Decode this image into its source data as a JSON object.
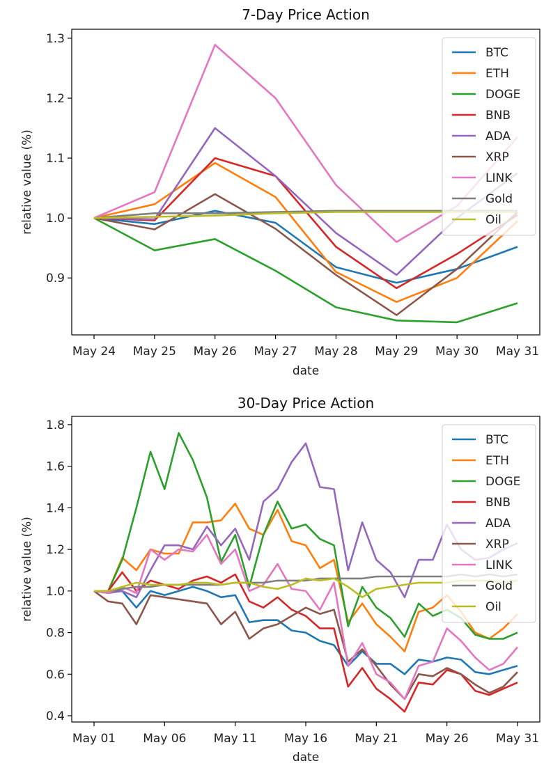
{
  "chart_data": [
    {
      "type": "line",
      "title": "7-Day Price Action",
      "xlabel": "date",
      "ylabel": "relative value (%)",
      "x": [
        "May 24",
        "May 25",
        "May 26",
        "May 27",
        "May 28",
        "May 29",
        "May 30",
        "May 31"
      ],
      "xticks": [
        "May 24",
        "May 25",
        "May 26",
        "May 27",
        "May 28",
        "May 29",
        "May 30",
        "May 31"
      ],
      "yticks": [
        "0.9",
        "1.0",
        "1.1",
        "1.2",
        "1.3"
      ],
      "ylim": [
        0.805,
        1.315
      ],
      "legend": "top-right",
      "series": [
        {
          "name": "BTC",
          "color": "#1f77b4",
          "values": [
            1.0,
            0.99,
            1.012,
            0.992,
            0.918,
            0.892,
            0.915,
            0.952
          ]
        },
        {
          "name": "ETH",
          "color": "#ff7f0e",
          "values": [
            1.0,
            1.023,
            1.092,
            1.035,
            0.91,
            0.86,
            0.9,
            0.995
          ]
        },
        {
          "name": "DOGE",
          "color": "#2ca02c",
          "values": [
            1.0,
            0.946,
            0.965,
            0.912,
            0.851,
            0.829,
            0.826,
            0.858
          ]
        },
        {
          "name": "BNB",
          "color": "#d62728",
          "values": [
            1.0,
            0.996,
            1.1,
            1.07,
            0.952,
            0.883,
            0.94,
            1.005
          ]
        },
        {
          "name": "ADA",
          "color": "#9467bd",
          "values": [
            1.0,
            0.998,
            1.15,
            1.07,
            0.975,
            0.905,
            1.0,
            1.075
          ]
        },
        {
          "name": "XRP",
          "color": "#8c564b",
          "values": [
            1.0,
            0.981,
            1.04,
            0.982,
            0.905,
            0.838,
            0.915,
            1.01
          ]
        },
        {
          "name": "LINK",
          "color": "#e377c2",
          "values": [
            1.0,
            1.043,
            1.289,
            1.2,
            1.055,
            0.96,
            1.02,
            1.135
          ]
        },
        {
          "name": "Gold",
          "color": "#7f7f7f",
          "values": [
            1.0,
            1.008,
            1.008,
            1.01,
            1.012,
            1.012,
            1.012,
            1.012
          ]
        },
        {
          "name": "Oil",
          "color": "#bcbd22",
          "values": [
            1.0,
            1.002,
            1.004,
            1.008,
            1.01,
            1.01,
            1.01,
            1.01
          ]
        }
      ]
    },
    {
      "type": "line",
      "title": "30-Day Price Action",
      "xlabel": "date",
      "ylabel": "relative value (%)",
      "x": [
        "May 01",
        "May 02",
        "May 03",
        "May 04",
        "May 05",
        "May 06",
        "May 07",
        "May 08",
        "May 09",
        "May 10",
        "May 11",
        "May 12",
        "May 13",
        "May 14",
        "May 15",
        "May 16",
        "May 17",
        "May 18",
        "May 19",
        "May 20",
        "May 21",
        "May 22",
        "May 23",
        "May 24",
        "May 25",
        "May 26",
        "May 27",
        "May 28",
        "May 29",
        "May 30",
        "May 31"
      ],
      "xticks": [
        "May 01",
        "May 06",
        "May 11",
        "May 16",
        "May 21",
        "May 26",
        "May 31"
      ],
      "yticks": [
        "0.4",
        "0.6",
        "0.8",
        "1.0",
        "1.2",
        "1.4",
        "1.6",
        "1.8"
      ],
      "ylim": [
        0.37,
        1.84
      ],
      "legend": "top-right",
      "series": [
        {
          "name": "BTC",
          "color": "#1f77b4",
          "values": [
            1.0,
            1.0,
            1.0,
            0.92,
            1.0,
            0.98,
            1.0,
            1.02,
            1.0,
            0.97,
            0.98,
            0.85,
            0.86,
            0.86,
            0.81,
            0.8,
            0.76,
            0.74,
            0.64,
            0.71,
            0.65,
            0.65,
            0.6,
            0.67,
            0.66,
            0.68,
            0.67,
            0.61,
            0.6,
            0.62,
            0.64
          ]
        },
        {
          "name": "ETH",
          "color": "#ff7f0e",
          "values": [
            1.0,
            1.0,
            1.16,
            1.1,
            1.2,
            1.18,
            1.18,
            1.33,
            1.33,
            1.34,
            1.42,
            1.3,
            1.27,
            1.39,
            1.24,
            1.22,
            1.11,
            1.15,
            0.85,
            0.94,
            0.84,
            0.78,
            0.71,
            0.9,
            0.92,
            0.98,
            0.9,
            0.8,
            0.77,
            0.82,
            0.89
          ]
        },
        {
          "name": "DOGE",
          "color": "#2ca02c",
          "values": [
            1.0,
            1.0,
            1.15,
            1.4,
            1.67,
            1.49,
            1.76,
            1.63,
            1.45,
            1.14,
            1.27,
            1.02,
            1.27,
            1.43,
            1.3,
            1.32,
            1.25,
            1.22,
            0.83,
            1.02,
            0.92,
            0.87,
            0.78,
            0.94,
            0.88,
            0.91,
            0.87,
            0.79,
            0.77,
            0.77,
            0.8
          ]
        },
        {
          "name": "BNB",
          "color": "#d62728",
          "values": [
            1.0,
            1.0,
            1.09,
            1.0,
            1.05,
            1.03,
            1.01,
            1.05,
            1.07,
            1.04,
            1.08,
            0.95,
            0.92,
            0.97,
            0.91,
            0.88,
            0.82,
            0.82,
            0.54,
            0.63,
            0.53,
            0.48,
            0.42,
            0.56,
            0.55,
            0.62,
            0.6,
            0.52,
            0.5,
            0.53,
            0.56
          ]
        },
        {
          "name": "ADA",
          "color": "#9467bd",
          "values": [
            1.0,
            0.99,
            1.0,
            0.97,
            1.1,
            1.22,
            1.22,
            1.2,
            1.31,
            1.22,
            1.3,
            1.15,
            1.43,
            1.49,
            1.62,
            1.71,
            1.5,
            1.49,
            1.1,
            1.33,
            1.15,
            1.09,
            0.97,
            1.15,
            1.15,
            1.32,
            1.2,
            1.15,
            1.16,
            1.2,
            1.23
          ]
        },
        {
          "name": "XRP",
          "color": "#8c564b",
          "values": [
            1.0,
            0.95,
            0.94,
            0.84,
            0.98,
            0.97,
            0.96,
            0.95,
            0.94,
            0.84,
            0.9,
            0.77,
            0.82,
            0.84,
            0.88,
            0.92,
            0.89,
            0.91,
            0.66,
            0.72,
            0.64,
            0.55,
            0.48,
            0.6,
            0.59,
            0.63,
            0.6,
            0.55,
            0.51,
            0.54,
            0.61
          ]
        },
        {
          "name": "LINK",
          "color": "#e377c2",
          "values": [
            1.0,
            0.99,
            1.02,
            0.99,
            1.2,
            1.15,
            1.2,
            1.19,
            1.27,
            1.13,
            1.2,
            1.0,
            1.03,
            1.13,
            1.01,
            1.0,
            0.91,
            1.04,
            0.64,
            0.75,
            0.6,
            0.56,
            0.48,
            0.64,
            0.66,
            0.82,
            0.76,
            0.68,
            0.62,
            0.65,
            0.73
          ]
        },
        {
          "name": "Gold",
          "color": "#7f7f7f",
          "values": [
            1.0,
            1.0,
            1.01,
            1.02,
            1.02,
            1.03,
            1.03,
            1.03,
            1.03,
            1.03,
            1.04,
            1.04,
            1.04,
            1.05,
            1.05,
            1.05,
            1.06,
            1.06,
            1.06,
            1.06,
            1.07,
            1.07,
            1.07,
            1.07,
            1.07,
            1.07,
            1.08,
            1.07,
            1.08,
            1.07,
            1.08
          ]
        },
        {
          "name": "Oil",
          "color": "#bcbd22",
          "values": [
            1.0,
            1.0,
            1.02,
            1.04,
            1.03,
            1.03,
            1.03,
            1.04,
            1.04,
            1.03,
            1.04,
            1.04,
            1.02,
            1.01,
            1.03,
            1.06,
            1.05,
            1.06,
            1.02,
            0.97,
            1.01,
            1.02,
            1.03,
            1.04,
            1.04,
            1.04,
            1.05,
            1.05,
            1.05,
            1.04,
            1.05
          ]
        }
      ]
    }
  ]
}
